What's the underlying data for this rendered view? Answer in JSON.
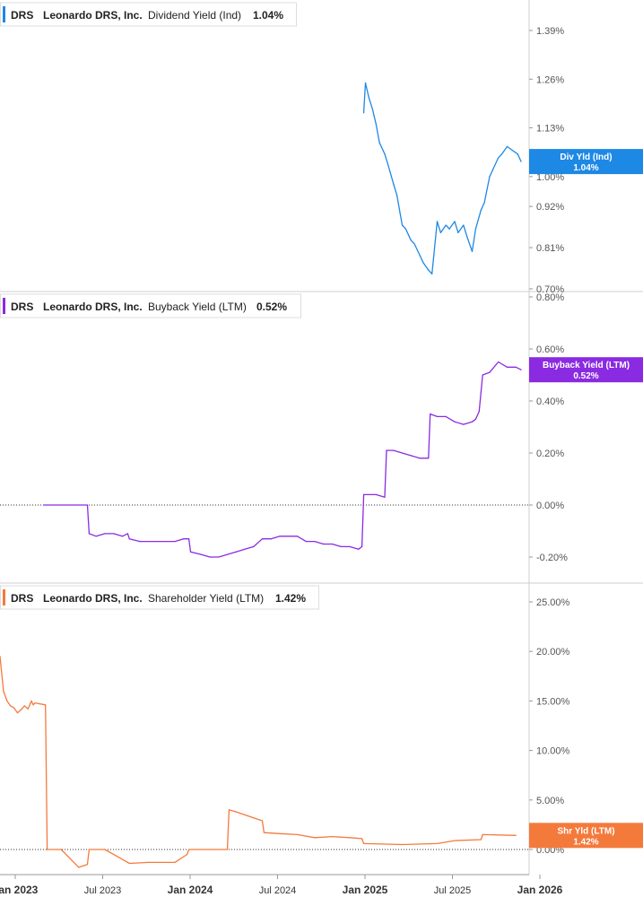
{
  "colors": {
    "dividend": "#1e88e5",
    "buyback": "#8a2be2",
    "shareholder": "#f47a3c",
    "axis_text": "#555555",
    "grid": "#cccccc"
  },
  "panels": [
    {
      "ticker": "DRS",
      "company": "Leonardo DRS, Inc.",
      "metric": "Dividend Yield (Ind)",
      "value": "1.04%",
      "badge_line1": "Div Yld (Ind)",
      "badge_line2": "1.04%"
    },
    {
      "ticker": "DRS",
      "company": "Leonardo DRS, Inc.",
      "metric": "Buyback Yield (LTM)",
      "value": "0.52%",
      "badge_line1": "Buyback Yield (LTM)",
      "badge_line2": "0.52%"
    },
    {
      "ticker": "DRS",
      "company": "Leonardo DRS, Inc.",
      "metric": "Shareholder Yield (LTM)",
      "value": "1.42%",
      "badge_line1": "Shr Yld (LTM)",
      "badge_line2": "1.42%"
    }
  ],
  "x_axis": {
    "labels": [
      "Jan 2023",
      "Jul 2023",
      "Jan 2024",
      "Jul 2024",
      "Jan 2025",
      "Jul 2025",
      "Jan 2026"
    ],
    "major": [
      true,
      false,
      true,
      false,
      true,
      false,
      true
    ]
  },
  "chart_data": [
    {
      "type": "line",
      "series": [
        {
          "name": "Dividend Yield (Ind)",
          "x": [
            2025.08,
            2025.09,
            2025.11,
            2025.13,
            2025.15,
            2025.17,
            2025.2,
            2025.22,
            2025.25,
            2025.27,
            2025.3,
            2025.32,
            2025.35,
            2025.37,
            2025.4,
            2025.42,
            2025.45,
            2025.47,
            2025.5,
            2025.52,
            2025.55,
            2025.57,
            2025.6,
            2025.62,
            2025.65,
            2025.67,
            2025.7,
            2025.72,
            2025.75,
            2025.77,
            2025.8,
            2025.82,
            2025.85,
            2025.87,
            2025.9,
            2025.93,
            2025.96,
            2025.98
          ],
          "values": [
            1.17,
            1.25,
            1.21,
            1.18,
            1.14,
            1.09,
            1.06,
            1.03,
            0.98,
            0.95,
            0.87,
            0.86,
            0.83,
            0.82,
            0.79,
            0.77,
            0.75,
            0.74,
            0.88,
            0.85,
            0.87,
            0.86,
            0.88,
            0.85,
            0.87,
            0.84,
            0.8,
            0.86,
            0.91,
            0.93,
            1.0,
            1.02,
            1.05,
            1.06,
            1.08,
            1.07,
            1.06,
            1.04
          ]
        }
      ],
      "xlim": [
        2023.0,
        2026.0
      ],
      "ylim": [
        0.7,
        1.39
      ],
      "y_ticks": [
        0.7,
        0.81,
        0.92,
        1.0,
        1.13,
        1.26,
        1.39
      ],
      "y_tick_labels": [
        "0.70%",
        "0.81%",
        "0.92%",
        "1.00%",
        "1.13%",
        "1.26%",
        "1.39%"
      ]
    },
    {
      "type": "line",
      "series": [
        {
          "name": "Buyback Yield (LTM)",
          "x": [
            2023.25,
            2023.5,
            2023.51,
            2023.55,
            2023.6,
            2023.65,
            2023.7,
            2023.73,
            2023.74,
            2023.8,
            2023.9,
            2024.0,
            2024.05,
            2024.08,
            2024.09,
            2024.15,
            2024.2,
            2024.25,
            2024.3,
            2024.35,
            2024.4,
            2024.45,
            2024.5,
            2024.55,
            2024.6,
            2024.65,
            2024.7,
            2024.75,
            2024.8,
            2024.85,
            2024.9,
            2024.95,
            2025.0,
            2025.05,
            2025.07,
            2025.08,
            2025.15,
            2025.2,
            2025.21,
            2025.25,
            2025.3,
            2025.35,
            2025.4,
            2025.45,
            2025.46,
            2025.5,
            2025.55,
            2025.6,
            2025.65,
            2025.7,
            2025.72,
            2025.74,
            2025.76,
            2025.8,
            2025.85,
            2025.9,
            2025.95,
            2025.98
          ],
          "values": [
            0.0,
            0.0,
            -0.11,
            -0.12,
            -0.11,
            -0.11,
            -0.12,
            -0.11,
            -0.13,
            -0.14,
            -0.14,
            -0.14,
            -0.13,
            -0.13,
            -0.18,
            -0.19,
            -0.2,
            -0.2,
            -0.19,
            -0.18,
            -0.17,
            -0.16,
            -0.13,
            -0.13,
            -0.12,
            -0.12,
            -0.12,
            -0.14,
            -0.14,
            -0.15,
            -0.15,
            -0.16,
            -0.16,
            -0.17,
            -0.16,
            0.04,
            0.04,
            0.03,
            0.21,
            0.21,
            0.2,
            0.19,
            0.18,
            0.18,
            0.35,
            0.34,
            0.34,
            0.32,
            0.31,
            0.32,
            0.33,
            0.36,
            0.5,
            0.51,
            0.55,
            0.53,
            0.53,
            0.52
          ]
        }
      ],
      "xlim": [
        2023.0,
        2026.0
      ],
      "ylim": [
        -0.29,
        0.8
      ],
      "y_ticks": [
        -0.2,
        0.0,
        0.2,
        0.4,
        0.6,
        0.8
      ],
      "y_tick_labels": [
        "-0.20%",
        "0.00%",
        "0.20%",
        "0.40%",
        "0.60%",
        "0.80%"
      ],
      "zero_line": true
    },
    {
      "type": "line",
      "series": [
        {
          "name": "Shareholder Yield (LTM)",
          "x": [
            2023.0,
            2023.02,
            2023.04,
            2023.06,
            2023.08,
            2023.1,
            2023.12,
            2023.14,
            2023.16,
            2023.18,
            2023.19,
            2023.2,
            2023.26,
            2023.27,
            2023.35,
            2023.45,
            2023.5,
            2023.51,
            2023.6,
            2023.73,
            2023.74,
            2023.85,
            2024.0,
            2024.07,
            2024.08,
            2024.2,
            2024.3,
            2024.31,
            2024.35,
            2024.45,
            2024.5,
            2024.51,
            2024.6,
            2024.7,
            2024.8,
            2024.9,
            2025.0,
            2025.07,
            2025.08,
            2025.3,
            2025.5,
            2025.6,
            2025.75,
            2025.76,
            2025.95
          ],
          "values": [
            19.5,
            16.0,
            15.0,
            14.5,
            14.3,
            13.8,
            14.1,
            14.5,
            14.2,
            15.0,
            14.6,
            14.8,
            14.6,
            0.0,
            0.0,
            -1.8,
            -1.5,
            0.0,
            0.0,
            -1.3,
            -1.4,
            -1.3,
            -1.3,
            -0.5,
            0.0,
            0.0,
            0.0,
            4.0,
            3.8,
            3.2,
            2.9,
            1.7,
            1.6,
            1.5,
            1.2,
            1.3,
            1.2,
            1.1,
            0.6,
            0.5,
            0.6,
            0.9,
            1.0,
            1.5,
            1.42
          ]
        }
      ],
      "xlim": [
        2023.0,
        2026.0
      ],
      "ylim": [
        -4.0,
        25.0
      ],
      "y_ticks": [
        0.0,
        5.0,
        10.0,
        15.0,
        20.0,
        25.0
      ],
      "y_tick_labels": [
        "0.00%",
        "5.00%",
        "10.00%",
        "15.00%",
        "20.00%",
        "25.00%"
      ],
      "zero_line": true
    }
  ]
}
